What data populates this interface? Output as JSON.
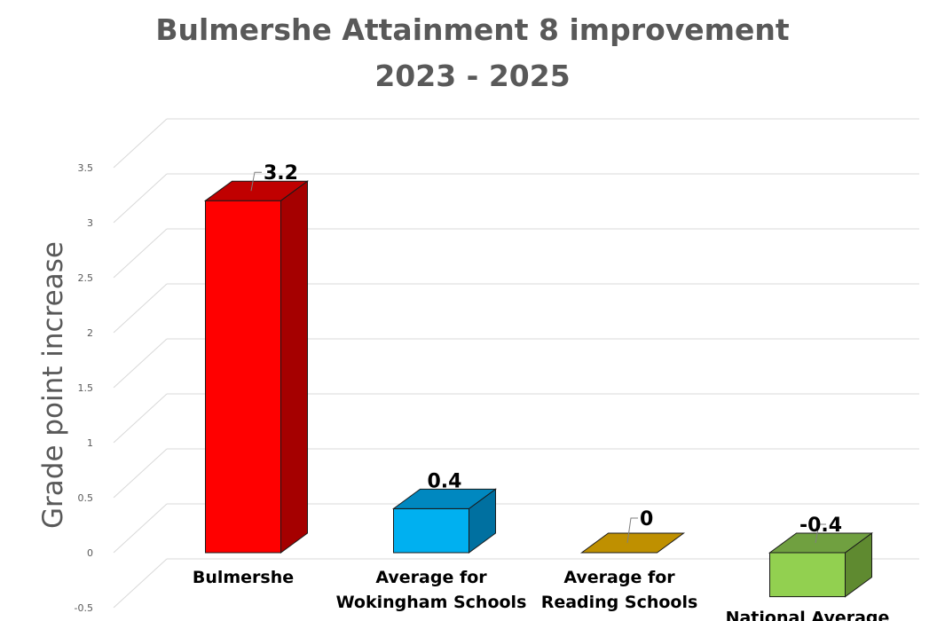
{
  "chart_data": {
    "type": "bar",
    "title": "Bulmershe Attainment 8 improvement",
    "subtitle": "2023 - 2025",
    "xlabel": "",
    "ylabel": "Grade point increase",
    "categories": [
      [
        "Bulmershe"
      ],
      [
        "Average for",
        "Wokingham Schools"
      ],
      [
        "Average for",
        "Reading Schools"
      ],
      [
        "National Average"
      ]
    ],
    "values": [
      3.2,
      0.4,
      0,
      -0.4
    ],
    "data_labels": [
      "3.2",
      "0.4",
      "0",
      "-0.4"
    ],
    "ylim": [
      -0.5,
      3.5
    ],
    "yticks": [
      "-0.5",
      "0",
      "0.5",
      "1",
      "1.5",
      "2",
      "2.5",
      "3",
      "3.5"
    ],
    "grid": true,
    "style": "3d-column",
    "colors": [
      {
        "front": "#ff0000",
        "side": "#a50000",
        "top": "#c00000"
      },
      {
        "front": "#00b0f0",
        "side": "#0070a0",
        "top": "#0088c0"
      },
      {
        "front": "#c9a100",
        "side": "#8a6e00",
        "top": "#bf9000"
      },
      {
        "front": "#92d050",
        "side": "#5f8a30",
        "top": "#70a040"
      }
    ]
  }
}
